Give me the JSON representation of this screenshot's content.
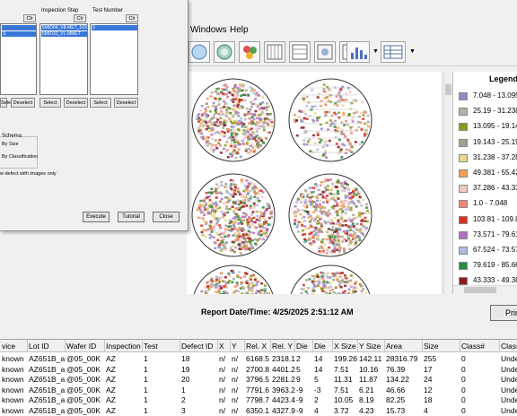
{
  "menu": {
    "windows": "Windows",
    "help": "Help"
  },
  "toolbar": {
    "buttons": [
      "wafer-map-icon",
      "wafer-gallery-icon",
      "die-stack-icon",
      "chart-icon",
      "table-view-icon",
      "list-view-icon",
      "scatter-icon",
      "defect-images-icon",
      "histogram-icon",
      "grid-icon"
    ],
    "dropdown_glyph": "▼"
  },
  "legend": {
    "title": "Legend",
    "items": [
      {
        "label": "7.048 - 13.095",
        "color": "#8a8ec8"
      },
      {
        "label": "25.19 - 31.238",
        "color": "#b8b0a0"
      },
      {
        "label": "13.095 - 19.143",
        "color": "#8c9a1c"
      },
      {
        "label": "19.143 - 25.19",
        "color": "#a8a090"
      },
      {
        "label": "31.238 - 37.286",
        "color": "#e8d890"
      },
      {
        "label": "49.381 - 55.429",
        "color": "#f0a050"
      },
      {
        "label": "37.286 - 43.333",
        "color": "#f4c8c0"
      },
      {
        "label": "1.0 - 7.048",
        "color": "#f08878"
      },
      {
        "label": "103.81 - 109.857",
        "color": "#d83020"
      },
      {
        "label": "73.571 - 79.619",
        "color": "#b070c0"
      },
      {
        "label": "67.524 - 73.571",
        "color": "#b0b8e0"
      },
      {
        "label": "79.619 - 85.667",
        "color": "#2a8a40"
      },
      {
        "label": "43.333 - 49.381",
        "color": "#8a1a20"
      }
    ]
  },
  "report": {
    "label": "Report Date/Time: 4/25/2025 2:51:12 AM",
    "print_label": "Prin"
  },
  "table": {
    "headers": [
      "vice",
      "Lot ID",
      "Wafer ID",
      "Inspection",
      "Test",
      "Defect ID",
      "X",
      "Y",
      "Rel. X",
      "Rel. Y",
      "Die",
      "Die",
      "X Size",
      "Y Size",
      "Area",
      "Size",
      "Class#",
      "Class"
    ],
    "rows": [
      [
        "known",
        "AZ651B_a",
        "@05_00K",
        "AZ",
        "1",
        "18",
        "n/",
        "n/",
        "6168.5",
        "2318.1",
        "2",
        "14",
        "199.26",
        "142.11",
        "28316.79",
        "255",
        "0",
        "Undef"
      ],
      [
        "known",
        "AZ651B_a",
        "@05_00K",
        "AZ",
        "1",
        "19",
        "n/",
        "n/",
        "2700.8",
        "4401.2",
        "5",
        "14",
        "7.51",
        "10.16",
        "76.39",
        "17",
        "0",
        "Undef"
      ],
      [
        "known",
        "AZ651B_a",
        "@05_00K",
        "AZ",
        "1",
        "20",
        "n/",
        "n/",
        "3796.5",
        "2281.2",
        "9",
        "5",
        "11.31",
        "11.87",
        "134.22",
        "24",
        "0",
        "Undef"
      ],
      [
        "known",
        "AZ651B_a",
        "@05_00K",
        "AZ",
        "1",
        "1",
        "n/",
        "n/",
        "7791.6",
        "3963.2",
        "-9",
        "-3",
        "7.51",
        "6.21",
        "46.66",
        "12",
        "0",
        "Undef"
      ],
      [
        "known",
        "AZ651B_a",
        "@05_00K",
        "AZ",
        "1",
        "2",
        "n/",
        "n/",
        "7798.7",
        "4423.4",
        "-9",
        "2",
        "10.05",
        "8.19",
        "82.25",
        "18",
        "0",
        "Undef"
      ],
      [
        "known",
        "AZ651B_a",
        "@05_00K",
        "AZ",
        "1",
        "3",
        "n/",
        "n/",
        "6350.1",
        "4327.9",
        "-9",
        "4",
        "3.72",
        "4.23",
        "15.73",
        "4",
        "0",
        "Undef"
      ]
    ]
  },
  "dialog": {
    "col1": {
      "button": "Clr",
      "items": [
        "",
        "S"
      ],
      "select": "Select",
      "deselect": "Deselect"
    },
    "col2": {
      "label": "Inspection Step",
      "button": "Clr",
      "items": [
        "5MID04_V8-MET_10X",
        "5MID32_VL-MMET"
      ],
      "select": "Select",
      "deselect": "Deselect"
    },
    "col3": {
      "label": "Test Number",
      "button": "Clr",
      "items": [
        "3"
      ],
      "select": "Select",
      "deselect": "Deselect"
    },
    "schema": {
      "label": "Schema",
      "by_size": "By Size",
      "by_class": "By Classification"
    },
    "images_only": "w defect with images only",
    "execute": "Execute",
    "tutorial": "Tutorial",
    "close": "Close"
  }
}
